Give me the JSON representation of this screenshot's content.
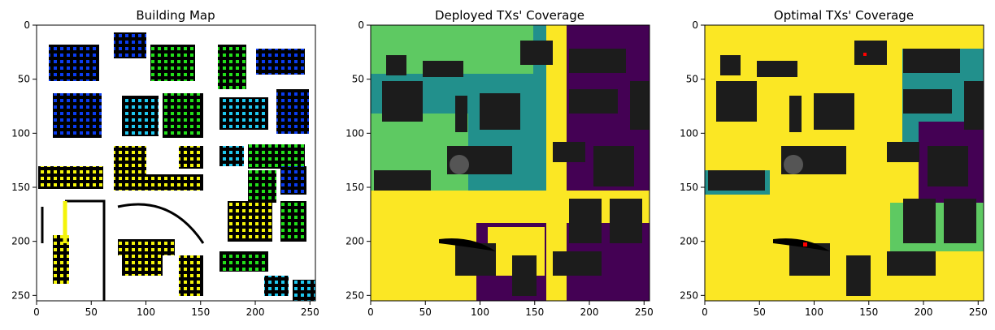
{
  "chart_data": [
    {
      "type": "heatmap",
      "title": "Building Map",
      "xlim": [
        0,
        255
      ],
      "ylim": [
        255,
        0
      ],
      "xticks": [
        0,
        50,
        100,
        150,
        200,
        250
      ],
      "yticks": [
        0,
        50,
        100,
        150,
        200,
        250
      ],
      "grid": false
    },
    {
      "type": "heatmap",
      "title": "Deployed TXs' Coverage",
      "xlim": [
        0,
        255
      ],
      "ylim": [
        255,
        0
      ],
      "xticks": [
        0,
        50,
        100,
        150,
        200,
        250
      ],
      "yticks": [
        0,
        50,
        100,
        150,
        200,
        250
      ],
      "grid": false
    },
    {
      "type": "heatmap",
      "title": "Optimal TXs' Coverage",
      "xlim": [
        0,
        255
      ],
      "ylim": [
        255,
        0
      ],
      "xticks": [
        0,
        50,
        100,
        150,
        200,
        250
      ],
      "yticks": [
        0,
        50,
        100,
        150,
        200,
        250
      ],
      "grid": false
    }
  ]
}
